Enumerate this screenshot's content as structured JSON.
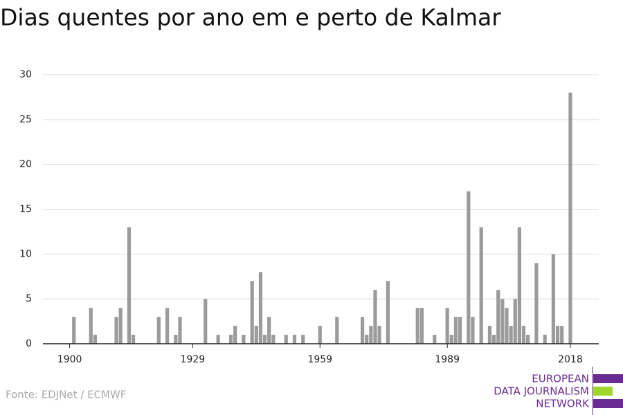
{
  "chart_data": {
    "type": "bar",
    "title": "Dias quentes por ano em e perto de Kalmar",
    "x": [
      1901,
      1905,
      1906,
      1911,
      1912,
      1914,
      1915,
      1921,
      1923,
      1925,
      1926,
      1932,
      1935,
      1938,
      1939,
      1941,
      1943,
      1944,
      1945,
      1946,
      1947,
      1948,
      1951,
      1953,
      1955,
      1959,
      1963,
      1969,
      1970,
      1971,
      1972,
      1973,
      1975,
      1982,
      1983,
      1986,
      1989,
      1990,
      1991,
      1992,
      1994,
      1995,
      1997,
      1999,
      2000,
      2001,
      2002,
      2003,
      2004,
      2005,
      2006,
      2007,
      2008,
      2010,
      2012,
      2014,
      2015,
      2016,
      2018
    ],
    "values": [
      3,
      4,
      1,
      3,
      4,
      13,
      1,
      3,
      4,
      1,
      3,
      5,
      1,
      1,
      2,
      1,
      7,
      2,
      8,
      1,
      3,
      1,
      1,
      1,
      1,
      2,
      3,
      3,
      1,
      2,
      6,
      2,
      7,
      4,
      4,
      1,
      4,
      1,
      3,
      3,
      17,
      3,
      13,
      2,
      1,
      6,
      5,
      4,
      2,
      5,
      13,
      2,
      1,
      9,
      1,
      10,
      2,
      2,
      28
    ],
    "color": "#9b9b9b",
    "xlim": [
      1893.7,
      2024.7
    ],
    "xticks": [
      1900,
      1929,
      1959,
      1989,
      2018
    ],
    "ylim": [
      0,
      30
    ],
    "yticks": [
      0,
      5,
      10,
      15,
      20,
      25,
      30
    ],
    "grid": true,
    "source": "Fonte: EDJNet / ECMWF",
    "logo": [
      "EUROPEAN",
      "DATA JOURNALISM",
      "NETWORK"
    ]
  }
}
